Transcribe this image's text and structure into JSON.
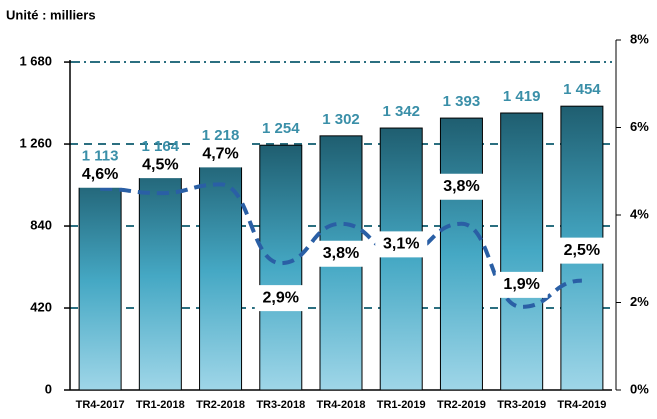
{
  "chart_data": {
    "type": "bar",
    "unit_label": "Unité : milliers",
    "categories": [
      "TR4-2017",
      "TR1-2018",
      "TR2-2018",
      "TR3-2018",
      "TR4-2018",
      "TR1-2019",
      "TR2-2019",
      "TR3-2019",
      "TR4-2019"
    ],
    "series": [
      {
        "type": "bar",
        "color": "#3a8fa8",
        "values": [
          1113,
          1164,
          1218,
          1254,
          1302,
          1342,
          1393,
          1419,
          1454
        ],
        "value_labels": [
          "1 113",
          "1 164",
          "1 218",
          "1 254",
          "1 302",
          "1 342",
          "1 393",
          "1 419",
          "1 454"
        ]
      },
      {
        "type": "line",
        "axis": "y2",
        "color": "#2a5fa5",
        "values": [
          4.6,
          4.5,
          4.7,
          2.9,
          3.8,
          3.1,
          3.8,
          1.9,
          2.5
        ],
        "value_labels": [
          "4,6%",
          "4,5%",
          "4,7%",
          "2,9%",
          "3,8%",
          "3,1%",
          "3,8%",
          "1,9%",
          "2,5%"
        ]
      }
    ],
    "ylim": [
      0,
      1793
    ],
    "yticks": [
      0,
      420,
      840,
      {
        "value": 1260,
        "label": "1 260"
      },
      {
        "value": 1680,
        "label": "1 680"
      }
    ],
    "y2lim": [
      0,
      8
    ],
    "y2ticks": [
      {
        "value": 0,
        "label": "0%"
      },
      {
        "value": 2,
        "label": "2%"
      },
      {
        "value": 4,
        "label": "4%"
      },
      {
        "value": 6,
        "label": "6%"
      },
      {
        "value": 8,
        "label": "8%"
      }
    ],
    "grid": true
  }
}
